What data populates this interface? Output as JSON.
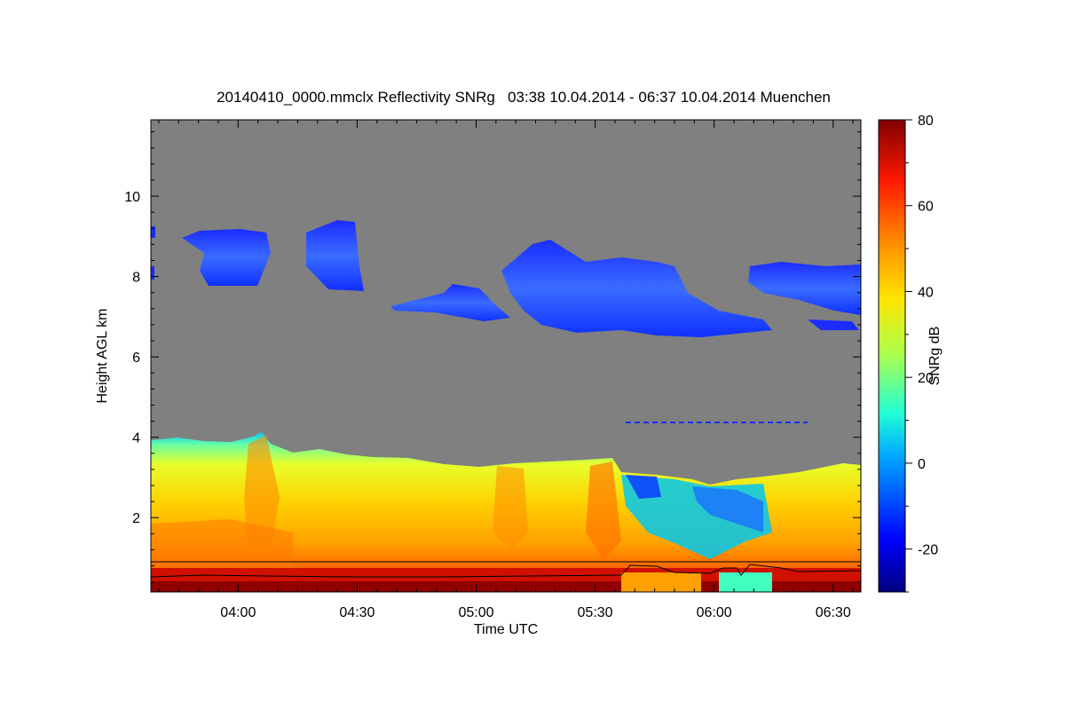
{
  "chart_data": {
    "type": "heatmap",
    "title": "20140410_0000.mmclx Reflectivity SNRg   03:38 10.04.2014 - 06:37 10.04.2014 Muenchen",
    "xlabel": "Time UTC",
    "ylabel": "Height AGL km",
    "colorbar_label": "SNRg dB",
    "x_range_minutes": [
      218,
      397
    ],
    "x_ticks": [
      {
        "minute": 240,
        "label": "04:00"
      },
      {
        "minute": 270,
        "label": "04:30"
      },
      {
        "minute": 300,
        "label": "05:00"
      },
      {
        "minute": 330,
        "label": "05:30"
      },
      {
        "minute": 360,
        "label": "06:00"
      },
      {
        "minute": 390,
        "label": "06:30"
      }
    ],
    "ylim": [
      0.15,
      11.9
    ],
    "y_ticks": [
      2,
      4,
      6,
      8,
      10
    ],
    "y_tick_labels": [
      "2",
      "4",
      "6",
      "8",
      "10"
    ],
    "colorbar_range": [
      -30,
      80
    ],
    "colorbar_ticks": [
      -20,
      0,
      20,
      40,
      60,
      80
    ],
    "colorbar_tick_labels": [
      "-20",
      "0",
      "20",
      "40",
      "60",
      "80"
    ],
    "background_color": "#808080",
    "echo_regions": [
      {
        "name": "low-level precipitation",
        "x_start": 218,
        "x_end": 397,
        "top_km_approx": 3.6,
        "snr_db_range": [
          5,
          70
        ]
      },
      {
        "name": "upper cloud layer",
        "x_start": 218,
        "x_end": 397,
        "height_km": [
          6.7,
          9.3
        ],
        "snr_db_range": [
          -25,
          -10
        ]
      }
    ]
  }
}
